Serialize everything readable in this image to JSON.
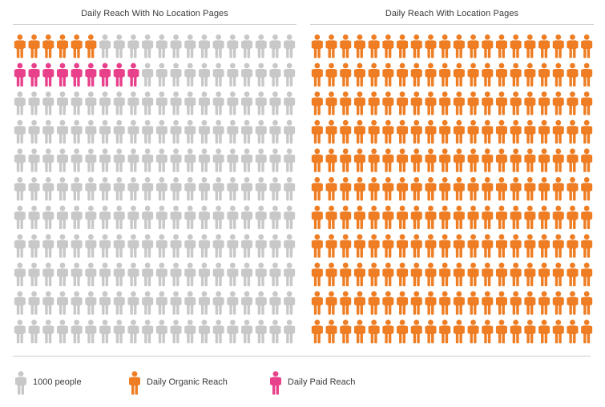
{
  "chart_data": {
    "type": "pictograph",
    "unit_label": "1000 people",
    "grid": {
      "rows": 11,
      "columns": 20
    },
    "panels": [
      {
        "title": "Daily Reach With No Location Pages",
        "organic": 6,
        "paid": 9
      },
      {
        "title": "Daily Reach With Location Pages",
        "organic": 220,
        "paid": 0
      }
    ],
    "legend": [
      {
        "key": "unit",
        "label": "1000 people",
        "color": "#c8c8c8"
      },
      {
        "key": "organic",
        "label": "Daily Organic Reach",
        "color": "#ee7d23"
      },
      {
        "key": "paid",
        "label": "Daily Paid Reach",
        "color": "#e8408a"
      }
    ]
  },
  "colors": {
    "unit": "#c8c8c8",
    "organic": "#ee7d23",
    "paid": "#e8408a"
  },
  "icon": "person-icon"
}
